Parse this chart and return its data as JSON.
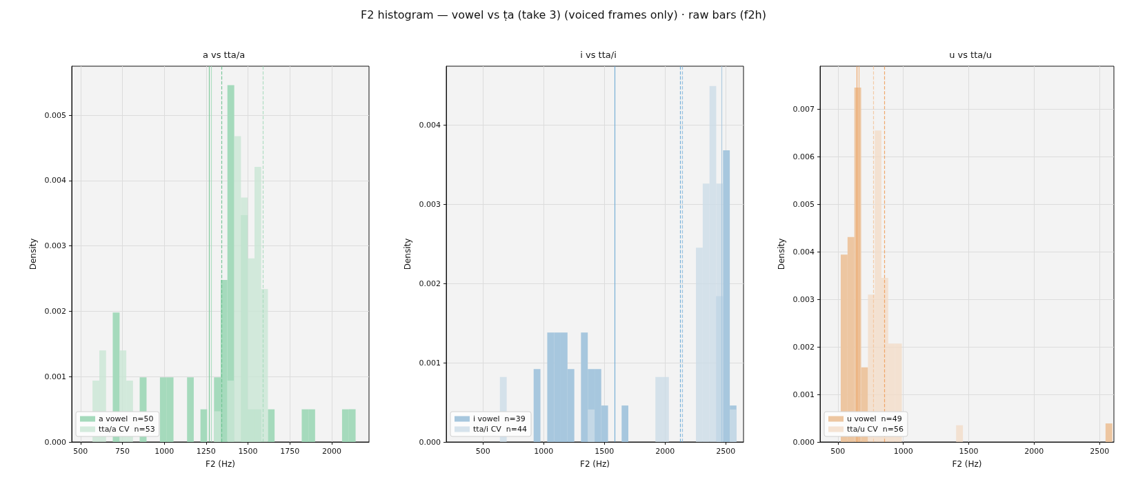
{
  "chart_data": [
    {
      "type": "histogram",
      "title": "a vs tta/a",
      "xlabel": "F2 (Hz)",
      "ylabel": "Density",
      "annotations": [
        "F2 histogram — vowel vs ṭa (take 3) (voiced frames only) · raw bars (f2h)"
      ],
      "bins": [
        531,
        571,
        612,
        652,
        692,
        733,
        773,
        813,
        853,
        894,
        934,
        974,
        1015,
        1055,
        1095,
        1136,
        1176,
        1216,
        1256,
        1297,
        1337,
        1377,
        1418,
        1458,
        1498,
        1539,
        1579,
        1619,
        1659,
        1700,
        1740,
        1780,
        1821,
        1861,
        1901,
        1942,
        1982,
        2022,
        2062,
        2103,
        2143
      ],
      "series": [
        {
          "name": "a vowel  n=50",
          "color": "#a5dabc",
          "values": [
            0,
            0,
            0,
            0,
            0.00198,
            0,
            0,
            0,
            0.00099,
            0,
            0,
            0.00099,
            0.00099,
            0,
            0,
            0.00099,
            0,
            0.0005,
            0,
            0.00099,
            0.00248,
            0.00546,
            0,
            0.00347,
            0.0005,
            0.0005,
            0,
            0.0005,
            0,
            0,
            0,
            0,
            0.0005,
            0.0005,
            0,
            0,
            0,
            0,
            0.0005,
            0.0005
          ]
        },
        {
          "name": "tta/a CV  n=53",
          "color": "#c9e6d5",
          "values": [
            0,
            0.00094,
            0.0014,
            0,
            0,
            0.0014,
            0.00094,
            0,
            0,
            0,
            0,
            0,
            0,
            0,
            0,
            0,
            0,
            0,
            0,
            0.00047,
            0,
            0.00094,
            0.00468,
            0.00374,
            0.00281,
            0.00421,
            0.00234,
            0,
            0,
            0,
            0,
            0,
            0,
            0,
            0,
            0,
            0,
            0,
            0,
            0
          ]
        }
      ],
      "ref_lines": [
        {
          "axis": "x",
          "value": 1270,
          "color": "#74c594",
          "line_style": "solid"
        },
        {
          "axis": "x",
          "value": 1279,
          "color": "#a6dbbd",
          "line_style": "solid"
        },
        {
          "axis": "x",
          "value": 1341,
          "color": "#6cc28f",
          "line_style": "dashed"
        },
        {
          "axis": "x",
          "value": 1590,
          "color": "#a6dbbd",
          "line_style": "dashed"
        }
      ],
      "xlim": [
        447,
        2223
      ],
      "ylim": [
        0,
        0.00575
      ],
      "xticks": [
        500,
        750,
        1000,
        1250,
        1500,
        1750,
        2000
      ],
      "yticks": [
        {
          "value": 0,
          "label": "0.000"
        },
        {
          "value": 0.001,
          "label": "0.001"
        },
        {
          "value": 0.002,
          "label": "0.002"
        },
        {
          "value": 0.003,
          "label": "0.003"
        },
        {
          "value": 0.004,
          "label": "0.004"
        },
        {
          "value": 0.005,
          "label": "0.005"
        }
      ],
      "grid": true,
      "legend": "bottom left"
    },
    {
      "type": "histogram",
      "title": "i vs tta/i",
      "xlabel": "F2 (Hz)",
      "ylabel": "Density",
      "bins": [
        250,
        306,
        361,
        417,
        473,
        529,
        584,
        640,
        696,
        751,
        807,
        863,
        918,
        974,
        1030,
        1086,
        1141,
        1197,
        1253,
        1308,
        1364,
        1420,
        1475,
        1531,
        1587,
        1643,
        1698,
        1754,
        1810,
        1865,
        1921,
        1977,
        2032,
        2088,
        2144,
        2200,
        2255,
        2311,
        2367,
        2422,
        2478,
        2534,
        2589
      ],
      "series": [
        {
          "name": "i vowel  n=39",
          "color": "#a7c7de",
          "values": [
            0,
            0,
            0,
            0,
            0,
            0,
            0,
            0,
            0,
            0,
            0,
            0,
            0.00092,
            0,
            0.00138,
            0.00138,
            0.00138,
            0.00092,
            0,
            0.00138,
            0.00092,
            0.00092,
            0.00046,
            0,
            0,
            0.00046,
            0,
            0,
            0,
            0,
            0,
            0,
            0,
            0,
            0,
            0,
            0,
            0,
            0,
            0.00184,
            0.00368,
            0.00046
          ]
        },
        {
          "name": "tta/i CV  n=44",
          "color": "#ccdce7",
          "values": [
            0,
            0,
            0,
            0,
            0,
            0,
            0,
            0.00082,
            0,
            0,
            0,
            0,
            0,
            0,
            0,
            0,
            0,
            0,
            0,
            0,
            0.00041,
            0,
            0,
            0,
            0,
            0,
            0,
            0,
            0,
            0,
            0.00082,
            0.00082,
            0,
            0,
            0,
            0,
            0.00245,
            0.00326,
            0.00449,
            0.00326,
            0,
            0.00041
          ]
        }
      ],
      "ref_lines": [
        {
          "axis": "x",
          "value": 1586,
          "color": "#6aa8d4",
          "line_style": "solid"
        },
        {
          "axis": "x",
          "value": 2469,
          "color": "#a7c7de",
          "line_style": "solid"
        },
        {
          "axis": "x",
          "value": 2127,
          "color": "#6aaad6",
          "line_style": "dashed"
        },
        {
          "axis": "x",
          "value": 2143,
          "color": "#8dbde0",
          "line_style": "dashed"
        }
      ],
      "xlim": [
        198,
        2647
      ],
      "ylim": [
        0,
        0.00474
      ],
      "xticks": [
        500,
        1000,
        1500,
        2000,
        2500
      ],
      "yticks": [
        {
          "value": 0,
          "label": "0.000"
        },
        {
          "value": 0.001,
          "label": "0.001"
        },
        {
          "value": 0.002,
          "label": "0.002"
        },
        {
          "value": 0.003,
          "label": "0.003"
        },
        {
          "value": 0.004,
          "label": "0.004"
        }
      ],
      "grid": true,
      "legend": "bottom left"
    },
    {
      "type": "histogram",
      "title": "u vs tta/u",
      "xlabel": "F2 (Hz)",
      "ylabel": "Density",
      "bins": [
        418,
        470,
        522,
        574,
        626,
        678,
        730,
        782,
        833,
        885,
        937,
        989,
        1041,
        1093,
        1145,
        1197,
        1249,
        1301,
        1352,
        1404,
        1456,
        1508,
        1560,
        1612,
        1664,
        1716,
        1768,
        1820,
        1871,
        1923,
        1975,
        2027,
        2079,
        2131,
        2183,
        2235,
        2287,
        2339,
        2390,
        2442,
        2494,
        2546,
        2598
      ],
      "series": [
        {
          "name": "u vowel  n=49",
          "color": "#edc6a1",
          "values": [
            0,
            0,
            0.00394,
            0.00431,
            0.00745,
            0.00157,
            0,
            0,
            0,
            0,
            0,
            0,
            0,
            0,
            0,
            0,
            0,
            0,
            0,
            0,
            0,
            0,
            0,
            0,
            0,
            0,
            0,
            0,
            0,
            0,
            0,
            0,
            0,
            0,
            0,
            0,
            0,
            0,
            0,
            0,
            0,
            0.00039
          ]
        },
        {
          "name": "tta/u CV  n=56",
          "color": "#f2dcc8",
          "values": [
            0,
            0,
            0,
            0,
            0,
            0,
            0.0031,
            0.00655,
            0.00345,
            0.00207,
            0.00207,
            0,
            0,
            0,
            0,
            0,
            0,
            0,
            0,
            0.00035,
            0,
            0,
            0,
            0,
            0,
            0,
            0,
            0,
            0,
            0,
            0,
            0,
            0,
            0,
            0,
            0,
            0,
            0,
            0,
            0,
            0,
            0
          ]
        }
      ],
      "ref_lines": [
        {
          "axis": "x",
          "value": 645,
          "color": "#ee9f5c",
          "line_style": "solid"
        },
        {
          "axis": "x",
          "value": 660,
          "color": "#f0b27e",
          "line_style": "solid"
        },
        {
          "axis": "x",
          "value": 769,
          "color": "#f5c69c",
          "line_style": "dashed"
        },
        {
          "axis": "x",
          "value": 854,
          "color": "#efa05c",
          "line_style": "dashed"
        }
      ],
      "xlim": [
        364,
        2610
      ],
      "ylim": [
        0,
        0.0079
      ],
      "xticks": [
        500,
        1000,
        1500,
        2000,
        2500
      ],
      "yticks": [
        {
          "value": 0,
          "label": "0.000"
        },
        {
          "value": 0.001,
          "label": "0.001"
        },
        {
          "value": 0.002,
          "label": "0.002"
        },
        {
          "value": 0.003,
          "label": "0.003"
        },
        {
          "value": 0.004,
          "label": "0.004"
        },
        {
          "value": 0.005,
          "label": "0.005"
        },
        {
          "value": 0.006,
          "label": "0.006"
        },
        {
          "value": 0.007,
          "label": "0.007"
        }
      ],
      "grid": true,
      "legend": "bottom left"
    }
  ]
}
